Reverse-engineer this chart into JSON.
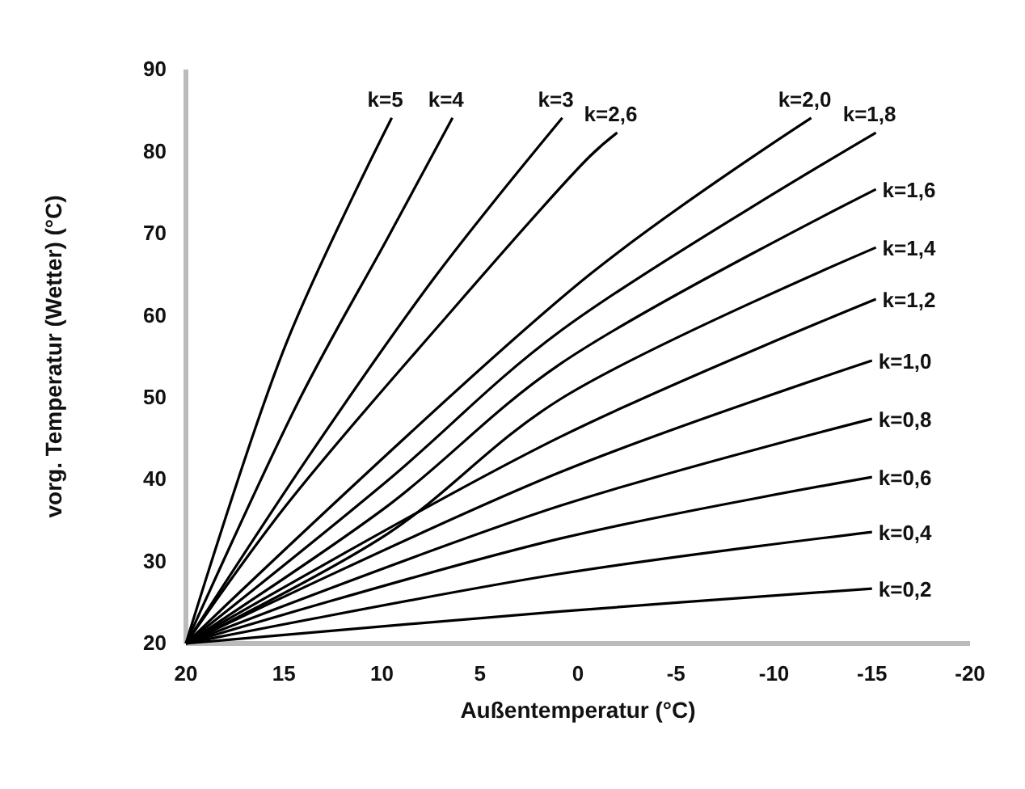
{
  "chart_data": {
    "type": "line",
    "xlabel": "Außentemperatur (°C)",
    "ylabel": "vorg. Temperatur (Wetter)   (°C)",
    "xlim": [
      20,
      -20
    ],
    "xticks": [
      20,
      15,
      10,
      5,
      0,
      -5,
      -10,
      -15,
      -20
    ],
    "ylim": [
      20,
      90
    ],
    "yticks": [
      20,
      30,
      40,
      50,
      60,
      70,
      80,
      90
    ],
    "grid": false,
    "marker": "none",
    "line_style": "solid",
    "series": [
      {
        "name": "k=5",
        "color": "#000000",
        "x": [
          20,
          14.9,
          9.5
        ],
        "values": [
          20,
          56.5,
          84.1
        ]
      },
      {
        "name": "k=4",
        "color": "#000000",
        "x": [
          20,
          14.2,
          9.7,
          6.4
        ],
        "values": [
          20,
          49.8,
          69.5,
          84.1
        ]
      },
      {
        "name": "k=3",
        "color": "#000000",
        "x": [
          20,
          13.6,
          7.2,
          0.8
        ],
        "values": [
          20,
          43.3,
          65,
          84.1
        ]
      },
      {
        "name": "k=2,6",
        "color": "#000000",
        "x": [
          20,
          14.9,
          7.2,
          -0.6,
          -2
        ],
        "values": [
          20,
          36.8,
          58.5,
          79.4,
          82.3
        ]
      },
      {
        "name": "k=2,0",
        "color": "#000000",
        "x": [
          20,
          -0.6,
          -11.9
        ],
        "values": [
          20,
          65,
          84.1
        ]
      },
      {
        "name": "k=1,8",
        "color": "#000000",
        "x": [
          20,
          9.7,
          0.9,
          -15.2
        ],
        "values": [
          20,
          39.9,
          58.1,
          82.3
        ]
      },
      {
        "name": "k=1,6",
        "color": "#000000",
        "x": [
          20,
          9.7,
          0.9,
          -15.2
        ],
        "values": [
          20,
          36.8,
          54.1,
          75.4
        ]
      },
      {
        "name": "k=1,4",
        "color": "#000000",
        "x": [
          20,
          9.7,
          0.9,
          -15.2
        ],
        "values": [
          20,
          33.4,
          49.8,
          68.3
        ]
      },
      {
        "name": "k=1,2",
        "color": "#000000",
        "x": [
          20,
          0.9,
          -15.2
        ],
        "values": [
          20,
          45.2,
          62
        ]
      },
      {
        "name": "k=1,0",
        "color": "#000000",
        "x": [
          20,
          0.9,
          -15
        ],
        "values": [
          20,
          40.9,
          54.5
        ]
      },
      {
        "name": "k=0,8",
        "color": "#000000",
        "x": [
          20,
          0.9,
          -15
        ],
        "values": [
          20,
          36.8,
          47.4
        ]
      },
      {
        "name": "k=0,6",
        "color": "#000000",
        "x": [
          20,
          0.9,
          -15
        ],
        "values": [
          20,
          32.8,
          40.3
        ]
      },
      {
        "name": "k=0,4",
        "color": "#000000",
        "x": [
          20,
          0.9,
          -15
        ],
        "values": [
          20,
          28.5,
          33.6
        ]
      },
      {
        "name": "k=0,2",
        "color": "#000000",
        "x": [
          20,
          0.9,
          -15
        ],
        "values": [
          20,
          23.9,
          26.7
        ]
      }
    ]
  }
}
